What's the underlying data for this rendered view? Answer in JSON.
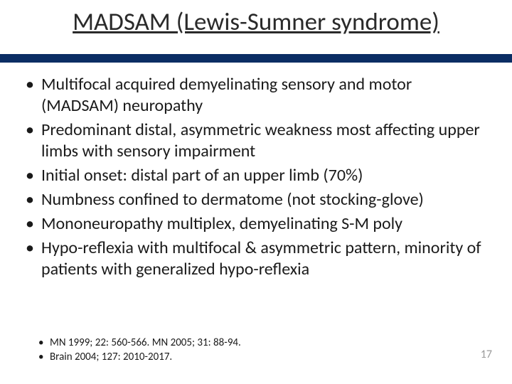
{
  "slide": {
    "title": "MADSAM (Lewis-Sumner syndrome)",
    "title_fontsize": 35,
    "title_color": "#2a2a2a",
    "title_underline": true,
    "band_color": "#0b2d64",
    "background_color": "#ffffff",
    "body_fontsize": 24,
    "body_lineheight": 1.25,
    "body_color": "#1a1a1a",
    "bullets": [
      "Multifocal acquired demyelinating sensory and motor (MADSAM) neuropathy",
      "Predominant distal, asymmetric weakness most affecting upper limbs with sensory impairment",
      "Initial onset: distal part of an upper limb (70%)",
      "Numbness confined to dermatome (not stocking-glove)",
      "Mononeuropathy multiplex, demyelinating S-M poly",
      "Hypo-reflexia with multifocal & asymmetric pattern, minority of patients with generalized hypo-reflexia"
    ],
    "refs_fontsize": 15,
    "refs": [
      "MN 1999; 22: 560-566.   MN 2005; 31: 88-94.",
      "Brain 2004; 127: 2010-2017."
    ],
    "page_number": "17",
    "page_number_fontsize": 16,
    "page_number_color": "#9a9a9a"
  }
}
